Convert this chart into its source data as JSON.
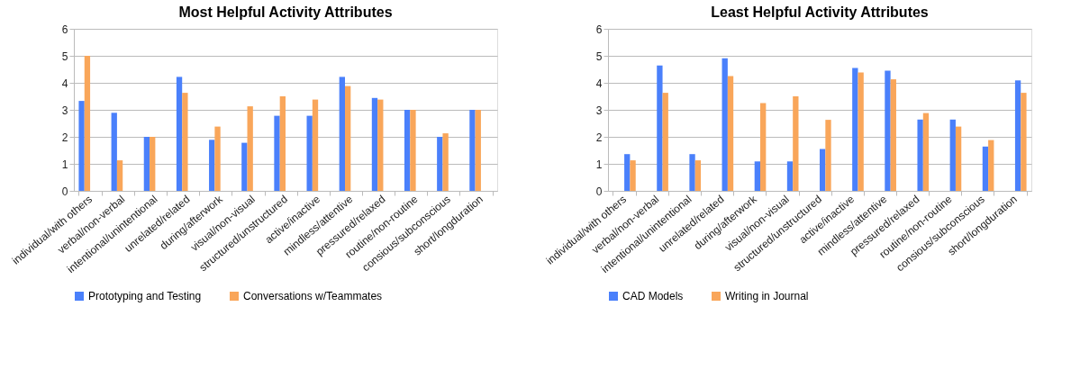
{
  "chart_data": [
    {
      "type": "bar",
      "title": "Most Helpful Activity Attributes",
      "categories": [
        "individual/with others",
        "verbal/non-verbal",
        "intentional/unintentional",
        "unrelated/related",
        "during/afterwork",
        "visual/non-visual",
        "structured/unstructured",
        "active/inactive",
        "mindless/attentive",
        "pressured/relaxed",
        "routine/non-routine",
        "consious/subconscious",
        "short/longduration"
      ],
      "series": [
        {
          "name": "Prototyping and Testing",
          "color": "#4a80fb",
          "values": [
            3.33,
            2.89,
            2,
            4.22,
            1.89,
            1.78,
            2.78,
            2.78,
            4.22,
            3.44,
            3,
            2,
            3
          ]
        },
        {
          "name": "Conversations w/Teammates",
          "color": "#f9a65a",
          "values": [
            5,
            1.13,
            2,
            3.63,
            2.38,
            3.13,
            3.5,
            3.38,
            3.88,
            3.38,
            3,
            2.13,
            3
          ]
        }
      ],
      "ylim": [
        0,
        6
      ],
      "yticks": [
        0,
        1,
        2,
        3,
        4,
        5,
        6
      ],
      "grid": "y",
      "legend": "bottom"
    },
    {
      "type": "bar",
      "title": "Least Helpful Activity Attributes",
      "categories": [
        "individual/with others",
        "verbal/non-verbal",
        "intentional/unintentional",
        "unrelated/related",
        "during/afterwork",
        "visual/non-visual",
        "structured/unstructured",
        "active/inactive",
        "mindless/attentive",
        "pressured/relaxed",
        "routine/non-routine",
        "consious/subconscious",
        "short/longduration"
      ],
      "series": [
        {
          "name": "CAD Models",
          "color": "#4a80fb",
          "values": [
            1.36,
            4.64,
            1.36,
            4.91,
            1.09,
            1.09,
            1.55,
            4.55,
            4.45,
            2.64,
            2.64,
            1.64,
            4.09
          ]
        },
        {
          "name": "Writing in Journal",
          "color": "#f9a65a",
          "values": [
            1.13,
            3.63,
            1.13,
            4.25,
            3.25,
            3.5,
            2.63,
            4.38,
            4.13,
            2.88,
            2.38,
            1.88,
            3.63
          ]
        }
      ],
      "ylim": [
        0,
        6
      ],
      "yticks": [
        0,
        1,
        2,
        3,
        4,
        5,
        6
      ],
      "grid": "y",
      "legend": "bottom"
    }
  ]
}
